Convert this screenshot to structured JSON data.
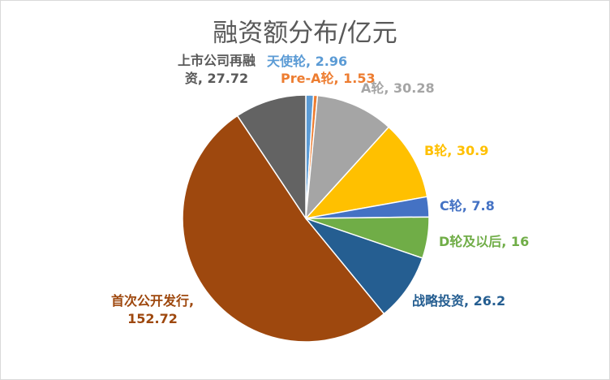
{
  "chart_data": {
    "type": "pie",
    "title": "融资额分布/亿元",
    "legend": "none",
    "slices": [
      {
        "name": "天使轮",
        "value": 2.96,
        "color": "#5b9bd5",
        "label_color": "#5b9bd5",
        "label_lines": [
          "天使轮, 2.96"
        ]
      },
      {
        "name": "Pre-A轮",
        "value": 1.53,
        "color": "#ed7d31",
        "label_color": "#ed7d31",
        "label_lines": [
          "Pre-A轮, 1.53"
        ]
      },
      {
        "name": "A轮",
        "value": 30.28,
        "color": "#a5a5a5",
        "label_color": "#a5a5a5",
        "label_lines": [
          "A轮, 30.28"
        ]
      },
      {
        "name": "B轮",
        "value": 30.9,
        "color": "#ffc000",
        "label_color": "#ffc000",
        "label_lines": [
          "B轮, 30.9"
        ]
      },
      {
        "name": "C轮",
        "value": 7.8,
        "color": "#4472c4",
        "label_color": "#4472c4",
        "label_lines": [
          "C轮, 7.8"
        ]
      },
      {
        "name": "D轮及以后",
        "value": 16,
        "color": "#70ad47",
        "label_color": "#70ad47",
        "label_lines": [
          "D轮及以后, 16"
        ]
      },
      {
        "name": "战略投资",
        "value": 26.2,
        "color": "#255e91",
        "label_color": "#255e91",
        "label_lines": [
          "战略投资, 26.2"
        ]
      },
      {
        "name": "首次公开发行",
        "value": 152.72,
        "color": "#9e480e",
        "label_color": "#9e480e",
        "label_lines": [
          "首次公开发行,",
          "152.72"
        ]
      },
      {
        "name": "上市公司再融资",
        "value": 27.72,
        "color": "#636363",
        "label_color": "#595959",
        "label_lines": [
          "上市公司再融",
          "资, 27.72"
        ]
      }
    ]
  }
}
